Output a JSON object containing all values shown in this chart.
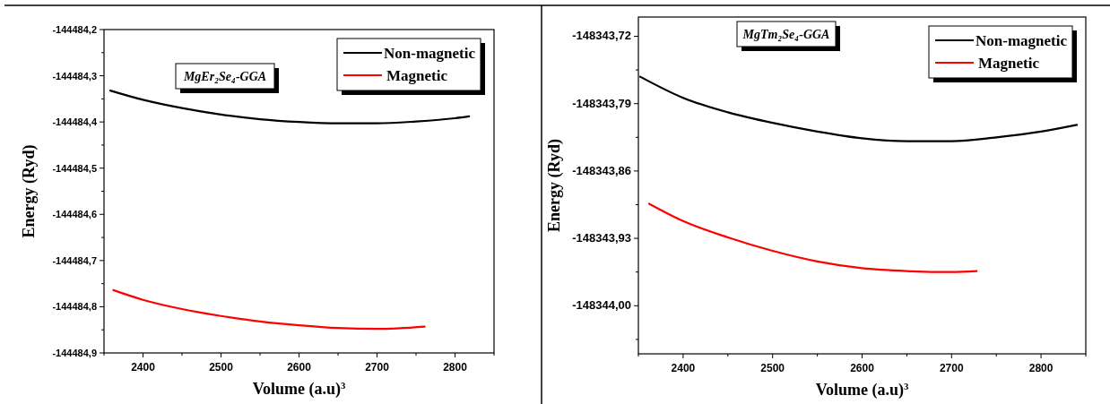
{
  "chart_data": [
    {
      "type": "line",
      "title": "MgEr₂Se₄-GGA",
      "xlabel": "Volume (a.u)$^{3}$",
      "ylabel": "Energy (Ryd)",
      "xlim": [
        2350,
        2850
      ],
      "ylim": [
        -144484.9,
        -144484.2
      ],
      "xticks": [
        {
          "value": 2350,
          "label": null
        },
        2400,
        {
          "value": 2450,
          "label": null
        },
        2500,
        {
          "value": 2550,
          "label": null
        },
        2600,
        {
          "value": 2650,
          "label": null
        },
        2700,
        {
          "value": 2750,
          "label": null
        },
        2800,
        {
          "value": 2850,
          "label": null
        }
      ],
      "yticks": [
        {
          "value": -144484.9,
          "label": "-144484,9"
        },
        {
          "value": -144484.85,
          "label": null
        },
        {
          "value": -144484.8,
          "label": "-144484,8"
        },
        {
          "value": -144484.75,
          "label": null
        },
        {
          "value": -144484.7,
          "label": "-144484,7"
        },
        {
          "value": -144484.65,
          "label": null
        },
        {
          "value": -144484.6,
          "label": "-144484,6"
        },
        {
          "value": -144484.55,
          "label": null
        },
        {
          "value": -144484.5,
          "label": "-144484,5"
        },
        {
          "value": -144484.45,
          "label": null
        },
        {
          "value": -144484.4,
          "label": "-144484,4"
        },
        {
          "value": -144484.35,
          "label": null
        },
        {
          "value": -144484.3,
          "label": "-144484,3"
        },
        {
          "value": -144484.25,
          "label": null
        },
        {
          "value": -144484.2,
          "label": "-144484,2"
        }
      ],
      "grid": false,
      "legend": "top right",
      "marker": "none",
      "line_style": "solid",
      "series": [
        {
          "name": "Non-magnetic",
          "color": "#000000",
          "x": [
            2358,
            2400,
            2450,
            2500,
            2550,
            2600,
            2650,
            2700,
            2750,
            2800,
            2818
          ],
          "values": [
            -144484.332,
            -144484.352,
            -144484.37,
            -144484.384,
            -144484.394,
            -144484.4,
            -144484.403,
            -144484.403,
            -144484.399,
            -144484.392,
            -144484.388
          ]
        },
        {
          "name": "Magnetic",
          "color": "#ff0000",
          "x": [
            2362,
            2400,
            2450,
            2500,
            2550,
            2600,
            2650,
            2700,
            2761
          ],
          "values": [
            -144484.764,
            -144484.785,
            -144484.805,
            -144484.82,
            -144484.832,
            -144484.84,
            -144484.846,
            -144484.848,
            -144484.843
          ]
        }
      ]
    },
    {
      "type": "line",
      "title": "MgTm₂Se₄-GGA",
      "xlabel": "Volume (a.u)$^{3}$",
      "ylabel": "Energy (Ryd)",
      "xlim": [
        2350,
        2850
      ],
      "ylim": [
        -148344.05,
        -148343.7
      ],
      "xticks": [
        {
          "value": 2350,
          "label": null
        },
        2400,
        {
          "value": 2450,
          "label": null
        },
        2500,
        {
          "value": 2550,
          "label": null
        },
        2600,
        {
          "value": 2650,
          "label": null
        },
        2700,
        {
          "value": 2750,
          "label": null
        },
        2800,
        {
          "value": 2850,
          "label": null
        }
      ],
      "yticks": [
        {
          "value": -148344.035,
          "label": null
        },
        {
          "value": -148344.0,
          "label": "-148344,00"
        },
        {
          "value": -148343.965,
          "label": null
        },
        {
          "value": -148343.93,
          "label": "-148343,93"
        },
        {
          "value": -148343.895,
          "label": null
        },
        {
          "value": -148343.86,
          "label": "-148343,86"
        },
        {
          "value": -148343.825,
          "label": null
        },
        {
          "value": -148343.79,
          "label": "-148343,79"
        },
        {
          "value": -148343.755,
          "label": null
        },
        {
          "value": -148343.72,
          "label": "-148343,72"
        }
      ],
      "grid": false,
      "legend": "top right",
      "marker": "none",
      "line_style": "solid",
      "series": [
        {
          "name": "Non-magnetic",
          "color": "#000000",
          "x": [
            2352,
            2400,
            2450,
            2500,
            2550,
            2600,
            2650,
            2700,
            2750,
            2800,
            2840
          ],
          "values": [
            -148343.762,
            -148343.784,
            -148343.799,
            -148343.81,
            -148343.819,
            -148343.826,
            -148343.829,
            -148343.829,
            -148343.825,
            -148343.819,
            -148343.812
          ]
        },
        {
          "name": "Magnetic",
          "color": "#ff0000",
          "x": [
            2362,
            2400,
            2450,
            2500,
            2550,
            2600,
            2650,
            2700,
            2728
          ],
          "values": [
            -148343.894,
            -148343.912,
            -148343.929,
            -148343.943,
            -148343.954,
            -148343.961,
            -148343.964,
            -148343.965,
            -148343.964
          ]
        }
      ]
    }
  ]
}
